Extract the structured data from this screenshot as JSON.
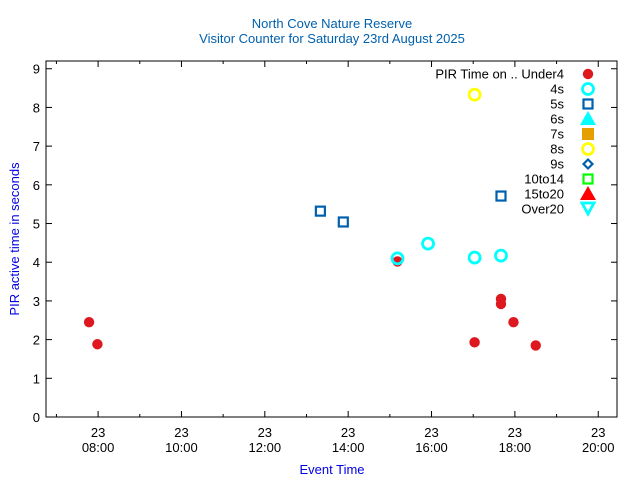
{
  "chart_data": {
    "type": "scatter",
    "title": "North Cove Nature Reserve",
    "subtitle": "Visitor Counter for Saturday 23rd August 2025",
    "xlabel": "Event Time",
    "ylabel": "PIR active time in seconds",
    "xlim": [
      "06:45",
      "20:27"
    ],
    "ylim": [
      0,
      9.2
    ],
    "yticks": [
      "0",
      "1",
      "2",
      "3",
      "4",
      "5",
      "6",
      "7",
      "8",
      "9"
    ],
    "xticks": [
      {
        "day": "23",
        "time": "08:00"
      },
      {
        "day": "23",
        "time": "10:00"
      },
      {
        "day": "23",
        "time": "12:00"
      },
      {
        "day": "23",
        "time": "14:00"
      },
      {
        "day": "23",
        "time": "16:00"
      },
      {
        "day": "23",
        "time": "18:00"
      },
      {
        "day": "23",
        "time": "20:00"
      }
    ],
    "grid": false,
    "legend_title": "PIR Time on ..",
    "legend_position": "top-right",
    "series": [
      {
        "name": "Under4",
        "marker": "filled-circle",
        "color": "#dd181f",
        "points": [
          [
            "07:47",
            2.45
          ],
          [
            "07:59",
            1.88
          ],
          [
            "15:11",
            4.02
          ],
          [
            "17:02",
            1.93
          ],
          [
            "17:40",
            3.05
          ],
          [
            "17:40",
            2.92
          ],
          [
            "17:58",
            2.45
          ],
          [
            "18:30",
            1.85
          ]
        ]
      },
      {
        "name": "4s",
        "marker": "open-circle",
        "color": "#00ffff",
        "points": [
          [
            "15:11",
            4.1
          ],
          [
            "15:55",
            4.48
          ],
          [
            "17:02",
            4.12
          ],
          [
            "17:40",
            4.17
          ]
        ]
      },
      {
        "name": "5s",
        "marker": "open-square",
        "color": "#0060ad",
        "points": [
          [
            "13:20",
            5.32
          ],
          [
            "13:53",
            5.04
          ],
          [
            "17:40",
            5.71
          ]
        ]
      },
      {
        "name": "6s",
        "marker": "filled-triangle",
        "color": "#00ffff",
        "points": []
      },
      {
        "name": "7s",
        "marker": "filled-square",
        "color": "#e69f00",
        "points": []
      },
      {
        "name": "8s",
        "marker": "open-circle",
        "color": "#ffff00",
        "points": [
          [
            "17:02",
            8.33
          ]
        ]
      },
      {
        "name": "9s",
        "marker": "open-diamond",
        "color": "#0060ad",
        "points": []
      },
      {
        "name": "10to14",
        "marker": "open-square",
        "color": "#00ff00",
        "points": []
      },
      {
        "name": "15to20",
        "marker": "filled-triangle",
        "color": "#ff0000",
        "points": []
      },
      {
        "name": "Over20",
        "marker": "open-triangle-down",
        "color": "#00ffff",
        "points": []
      }
    ]
  }
}
